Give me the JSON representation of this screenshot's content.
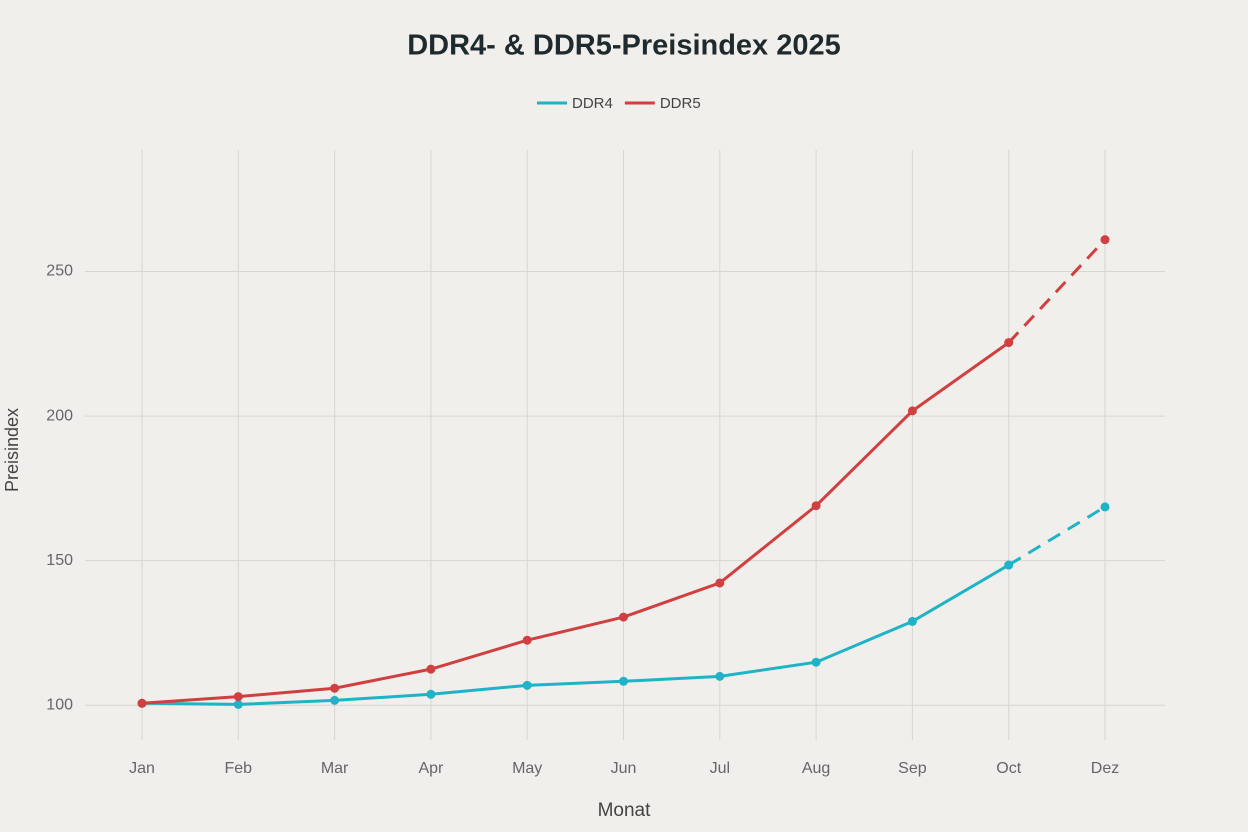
{
  "chart_data": {
    "type": "line",
    "title": "DDR4- & DDR5-Preisindex 2025",
    "x_label": "Monat",
    "y_label": "Preisindex",
    "categories": [
      "Jan",
      "Feb",
      "Mar",
      "Apr",
      "May",
      "Jun",
      "Jul",
      "Aug",
      "Sep",
      "Oct",
      "Dez"
    ],
    "series": [
      {
        "name": "DDR4",
        "color": "#1fb3c7",
        "values": [
          100.7,
          100.3,
          101.7,
          103.8,
          106.9,
          108.3,
          110,
          114.9,
          129,
          148.5,
          168.6
        ]
      },
      {
        "name": "DDR5",
        "color": "#d04040",
        "values": [
          100.7,
          103,
          105.9,
          112.5,
          122.5,
          130.5,
          142.3,
          169,
          201.8,
          225.4,
          261
        ]
      }
    ],
    "dashed_from_index": 9,
    "ylim": [
      88,
      292
    ],
    "yticks": [
      100,
      150,
      200,
      250
    ],
    "grid": true,
    "legend": "top"
  }
}
